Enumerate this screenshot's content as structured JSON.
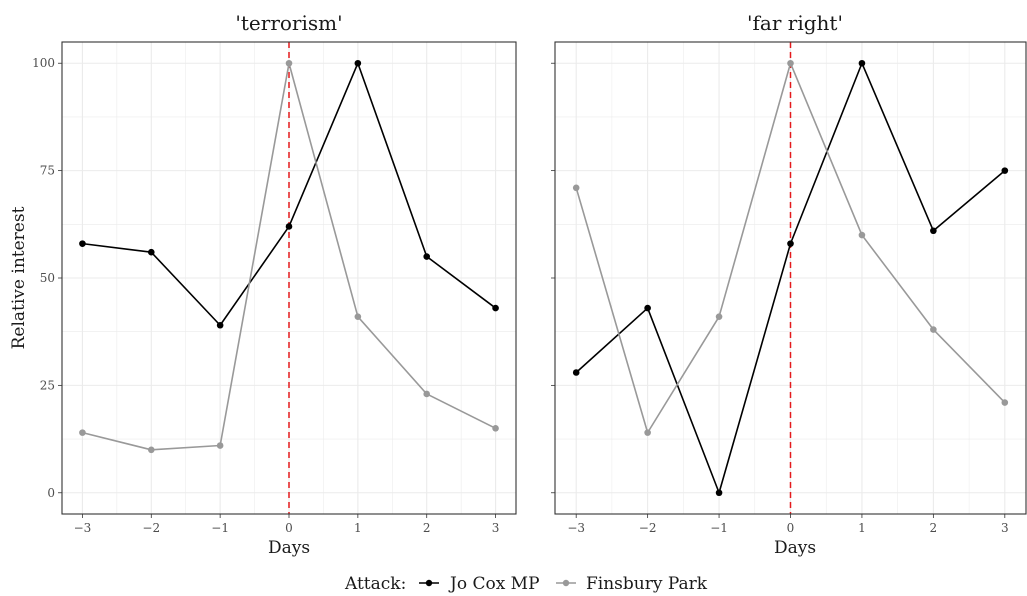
{
  "chart_data": {
    "type": "line",
    "ylabel": "Relative interest",
    "xlabel": "Days",
    "xlim": [
      -3,
      3
    ],
    "ylim": [
      0,
      100
    ],
    "x_ticks": [
      "-3",
      "-2",
      "-1",
      "0",
      "1",
      "2",
      "3"
    ],
    "y_ticks": [
      "0",
      "25",
      "50",
      "75",
      "100"
    ],
    "grid": true,
    "reference_line": {
      "x": 0,
      "style": "dashed",
      "color": "#e41a1c"
    },
    "legend": {
      "title": "Attack:",
      "position": "bottom"
    },
    "series_styles": [
      {
        "name": "Jo Cox MP",
        "color": "#000000"
      },
      {
        "name": "Finsbury Park",
        "color": "#999999"
      }
    ],
    "panels": [
      {
        "title": "'terrorism'",
        "series": [
          {
            "name": "Jo Cox MP",
            "x": [
              -3,
              -2,
              -1,
              0,
              1,
              2,
              3
            ],
            "values": [
              58,
              56,
              39,
              62,
              100,
              55,
              43
            ]
          },
          {
            "name": "Finsbury Park",
            "x": [
              -3,
              -2,
              -1,
              0,
              1,
              2,
              3
            ],
            "values": [
              14,
              10,
              11,
              100,
              41,
              23,
              15
            ]
          }
        ]
      },
      {
        "title": "'far right'",
        "series": [
          {
            "name": "Jo Cox MP",
            "x": [
              -3,
              -2,
              -1,
              0,
              1,
              2,
              3
            ],
            "values": [
              28,
              43,
              0,
              58,
              100,
              61,
              75
            ]
          },
          {
            "name": "Finsbury Park",
            "x": [
              -3,
              -2,
              -1,
              0,
              1,
              2,
              3
            ],
            "values": [
              71,
              14,
              41,
              100,
              60,
              38,
              21
            ]
          }
        ]
      }
    ]
  }
}
